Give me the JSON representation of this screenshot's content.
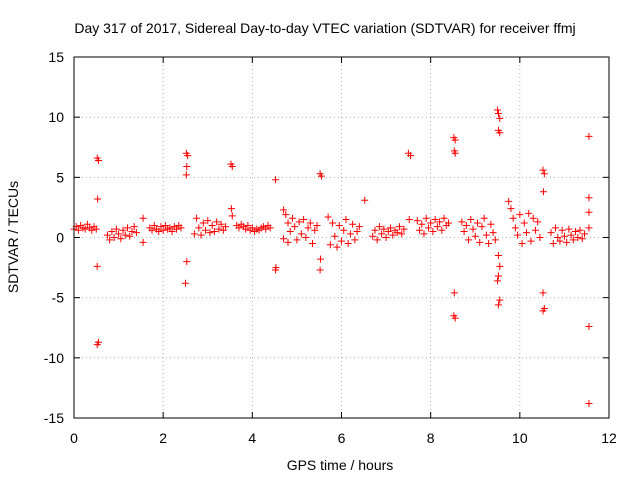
{
  "chart_data": {
    "type": "scatter",
    "title": "Day 317 of 2017, Sidereal Day-to-day VTEC variation (SDTVAR) for receiver ffmj",
    "xlabel": "GPS time / hours",
    "ylabel": "SDTVAR / TECUs",
    "xlim": [
      0,
      12
    ],
    "ylim": [
      -15,
      15
    ],
    "x_ticks": [
      0,
      2,
      4,
      6,
      8,
      10,
      12
    ],
    "x_tick_labels": [
      "0",
      "2",
      "4",
      "6",
      "8",
      "10",
      "12"
    ],
    "y_ticks": [
      -15,
      -10,
      -5,
      0,
      5,
      10,
      15
    ],
    "y_tick_labels": [
      "-15",
      "-10",
      "-5",
      "0",
      "5",
      "10",
      "15"
    ],
    "grid": true,
    "marker": "plus",
    "color": "#ff0000",
    "series": [
      {
        "name": "SDTVAR",
        "points": [
          [
            0.0,
            0.7
          ],
          [
            0.05,
            0.9
          ],
          [
            0.1,
            0.6
          ],
          [
            0.15,
            1.0
          ],
          [
            0.2,
            0.8
          ],
          [
            0.25,
            0.7
          ],
          [
            0.3,
            1.1
          ],
          [
            0.35,
            0.8
          ],
          [
            0.4,
            0.6
          ],
          [
            0.45,
            0.9
          ],
          [
            0.5,
            0.7
          ],
          [
            0.52,
            6.6
          ],
          [
            0.55,
            6.4
          ],
          [
            0.53,
            3.2
          ],
          [
            0.52,
            -2.4
          ],
          [
            0.55,
            -8.7
          ],
          [
            0.52,
            -8.9
          ],
          [
            0.75,
            0.2
          ],
          [
            0.8,
            -0.2
          ],
          [
            0.85,
            0.5
          ],
          [
            0.9,
            0.0
          ],
          [
            0.95,
            0.7
          ],
          [
            1.0,
            0.3
          ],
          [
            1.05,
            -0.1
          ],
          [
            1.1,
            0.6
          ],
          [
            1.15,
            0.2
          ],
          [
            1.2,
            0.8
          ],
          [
            1.25,
            0.1
          ],
          [
            1.3,
            0.5
          ],
          [
            1.35,
            0.9
          ],
          [
            1.4,
            0.4
          ],
          [
            1.55,
            1.6
          ],
          [
            1.55,
            -0.4
          ],
          [
            1.7,
            0.8
          ],
          [
            1.75,
            0.6
          ],
          [
            1.8,
            1.0
          ],
          [
            1.85,
            0.7
          ],
          [
            1.9,
            0.5
          ],
          [
            1.95,
            0.9
          ],
          [
            2.0,
            0.6
          ],
          [
            2.05,
            1.0
          ],
          [
            2.1,
            0.7
          ],
          [
            2.15,
            0.8
          ],
          [
            2.2,
            0.5
          ],
          [
            2.25,
            0.9
          ],
          [
            2.3,
            0.7
          ],
          [
            2.35,
            1.0
          ],
          [
            2.4,
            0.8
          ],
          [
            2.52,
            7.0
          ],
          [
            2.55,
            6.8
          ],
          [
            2.53,
            5.9
          ],
          [
            2.52,
            5.2
          ],
          [
            2.53,
            -2.0
          ],
          [
            2.5,
            -3.8
          ],
          [
            2.7,
            0.3
          ],
          [
            2.75,
            1.6
          ],
          [
            2.8,
            0.8
          ],
          [
            2.85,
            0.2
          ],
          [
            2.9,
            1.2
          ],
          [
            2.95,
            0.6
          ],
          [
            3.0,
            1.4
          ],
          [
            3.05,
            0.4
          ],
          [
            3.1,
            1.0
          ],
          [
            3.15,
            0.5
          ],
          [
            3.2,
            1.3
          ],
          [
            3.25,
            0.7
          ],
          [
            3.3,
            1.1
          ],
          [
            3.35,
            0.6
          ],
          [
            3.4,
            0.9
          ],
          [
            3.52,
            6.1
          ],
          [
            3.55,
            5.9
          ],
          [
            3.53,
            2.4
          ],
          [
            3.55,
            1.8
          ],
          [
            3.65,
            1.0
          ],
          [
            3.7,
            0.8
          ],
          [
            3.75,
            1.1
          ],
          [
            3.8,
            0.9
          ],
          [
            3.85,
            0.7
          ],
          [
            3.9,
            1.0
          ],
          [
            3.95,
            0.6
          ],
          [
            4.0,
            0.8
          ],
          [
            4.05,
            0.5
          ],
          [
            4.1,
            0.7
          ],
          [
            4.15,
            0.6
          ],
          [
            4.2,
            0.8
          ],
          [
            4.25,
            0.9
          ],
          [
            4.3,
            0.7
          ],
          [
            4.35,
            1.0
          ],
          [
            4.4,
            0.8
          ],
          [
            4.52,
            4.8
          ],
          [
            4.53,
            -2.5
          ],
          [
            4.52,
            -2.7
          ],
          [
            4.7,
            2.3
          ],
          [
            4.75,
            1.9
          ],
          [
            4.8,
            1.2
          ],
          [
            4.85,
            0.5
          ],
          [
            4.7,
            -0.1
          ],
          [
            4.8,
            -0.4
          ],
          [
            4.9,
            1.6
          ],
          [
            4.95,
            0.9
          ],
          [
            5.0,
            -0.2
          ],
          [
            5.05,
            1.3
          ],
          [
            5.1,
            0.3
          ],
          [
            5.15,
            1.5
          ],
          [
            5.2,
            0.0
          ],
          [
            5.25,
            0.8
          ],
          [
            5.3,
            1.2
          ],
          [
            5.35,
            -0.5
          ],
          [
            5.4,
            0.6
          ],
          [
            5.45,
            1.0
          ],
          [
            5.52,
            5.3
          ],
          [
            5.55,
            5.1
          ],
          [
            5.53,
            -1.8
          ],
          [
            5.52,
            -2.7
          ],
          [
            5.7,
            1.7
          ],
          [
            5.75,
            -0.6
          ],
          [
            5.8,
            1.2
          ],
          [
            5.85,
            0.1
          ],
          [
            5.9,
            -0.8
          ],
          [
            5.95,
            1.0
          ],
          [
            6.0,
            -0.3
          ],
          [
            6.05,
            0.6
          ],
          [
            6.1,
            1.5
          ],
          [
            6.15,
            -0.5
          ],
          [
            6.2,
            0.3
          ],
          [
            6.25,
            1.1
          ],
          [
            6.3,
            -0.2
          ],
          [
            6.35,
            0.5
          ],
          [
            6.4,
            0.9
          ],
          [
            6.52,
            3.1
          ],
          [
            6.7,
            0.1
          ],
          [
            6.75,
            0.6
          ],
          [
            6.8,
            -0.2
          ],
          [
            6.85,
            0.9
          ],
          [
            6.9,
            0.3
          ],
          [
            6.95,
            0.7
          ],
          [
            7.0,
            0.0
          ],
          [
            7.05,
            0.5
          ],
          [
            7.1,
            0.8
          ],
          [
            7.15,
            0.2
          ],
          [
            7.2,
            0.6
          ],
          [
            7.25,
            0.4
          ],
          [
            7.3,
            0.9
          ],
          [
            7.35,
            0.3
          ],
          [
            7.4,
            0.7
          ],
          [
            7.5,
            7.0
          ],
          [
            7.55,
            6.8
          ],
          [
            7.52,
            1.5
          ],
          [
            7.7,
            1.4
          ],
          [
            7.75,
            0.6
          ],
          [
            7.8,
            1.1
          ],
          [
            7.85,
            0.3
          ],
          [
            7.9,
            1.6
          ],
          [
            7.95,
            0.8
          ],
          [
            8.0,
            1.2
          ],
          [
            8.05,
            0.5
          ],
          [
            8.1,
            1.5
          ],
          [
            8.15,
            0.9
          ],
          [
            8.2,
            1.3
          ],
          [
            8.25,
            0.6
          ],
          [
            8.3,
            1.6
          ],
          [
            8.35,
            1.0
          ],
          [
            8.4,
            1.2
          ],
          [
            8.52,
            8.3
          ],
          [
            8.55,
            8.1
          ],
          [
            8.53,
            7.2
          ],
          [
            8.55,
            7.0
          ],
          [
            8.53,
            -4.6
          ],
          [
            8.52,
            -6.5
          ],
          [
            8.55,
            -6.7
          ],
          [
            8.7,
            1.3
          ],
          [
            8.75,
            0.5
          ],
          [
            8.8,
            1.0
          ],
          [
            8.85,
            -0.2
          ],
          [
            8.9,
            1.5
          ],
          [
            8.95,
            0.7
          ],
          [
            9.0,
            0.1
          ],
          [
            9.05,
            1.2
          ],
          [
            9.1,
            -0.4
          ],
          [
            9.15,
            0.9
          ],
          [
            9.2,
            1.6
          ],
          [
            9.25,
            0.2
          ],
          [
            9.3,
            -0.5
          ],
          [
            9.35,
            1.1
          ],
          [
            9.4,
            0.4
          ],
          [
            9.45,
            -0.2
          ],
          [
            9.5,
            10.6
          ],
          [
            9.52,
            10.3
          ],
          [
            9.55,
            9.9
          ],
          [
            9.52,
            8.9
          ],
          [
            9.55,
            8.7
          ],
          [
            9.52,
            -1.5
          ],
          [
            9.55,
            -2.4
          ],
          [
            9.52,
            -3.2
          ],
          [
            9.5,
            -3.6
          ],
          [
            9.55,
            -5.2
          ],
          [
            9.52,
            -5.6
          ],
          [
            9.75,
            3.0
          ],
          [
            9.8,
            2.4
          ],
          [
            9.85,
            1.6
          ],
          [
            9.9,
            0.8
          ],
          [
            9.95,
            0.2
          ],
          [
            10.0,
            1.9
          ],
          [
            10.05,
            -0.5
          ],
          [
            10.1,
            1.2
          ],
          [
            10.15,
            0.4
          ],
          [
            10.2,
            2.0
          ],
          [
            10.25,
            -0.3
          ],
          [
            10.3,
            1.6
          ],
          [
            10.35,
            0.6
          ],
          [
            10.4,
            1.3
          ],
          [
            10.45,
            0.0
          ],
          [
            10.52,
            5.6
          ],
          [
            10.55,
            5.3
          ],
          [
            10.53,
            3.8
          ],
          [
            10.52,
            -4.6
          ],
          [
            10.55,
            -5.9
          ],
          [
            10.52,
            -6.1
          ],
          [
            10.7,
            0.4
          ],
          [
            10.75,
            -0.5
          ],
          [
            10.8,
            0.8
          ],
          [
            10.85,
            0.0
          ],
          [
            10.9,
            -0.3
          ],
          [
            10.95,
            0.6
          ],
          [
            11.0,
            0.1
          ],
          [
            11.05,
            -0.4
          ],
          [
            11.1,
            0.7
          ],
          [
            11.15,
            0.2
          ],
          [
            11.2,
            -0.2
          ],
          [
            11.25,
            0.5
          ],
          [
            11.3,
            0.0
          ],
          [
            11.35,
            0.6
          ],
          [
            11.4,
            -0.1
          ],
          [
            11.45,
            0.3
          ],
          [
            11.55,
            8.4
          ],
          [
            11.55,
            3.3
          ],
          [
            11.55,
            2.1
          ],
          [
            11.55,
            0.8
          ],
          [
            11.55,
            -7.4
          ],
          [
            11.55,
            -13.8
          ]
        ]
      }
    ]
  }
}
